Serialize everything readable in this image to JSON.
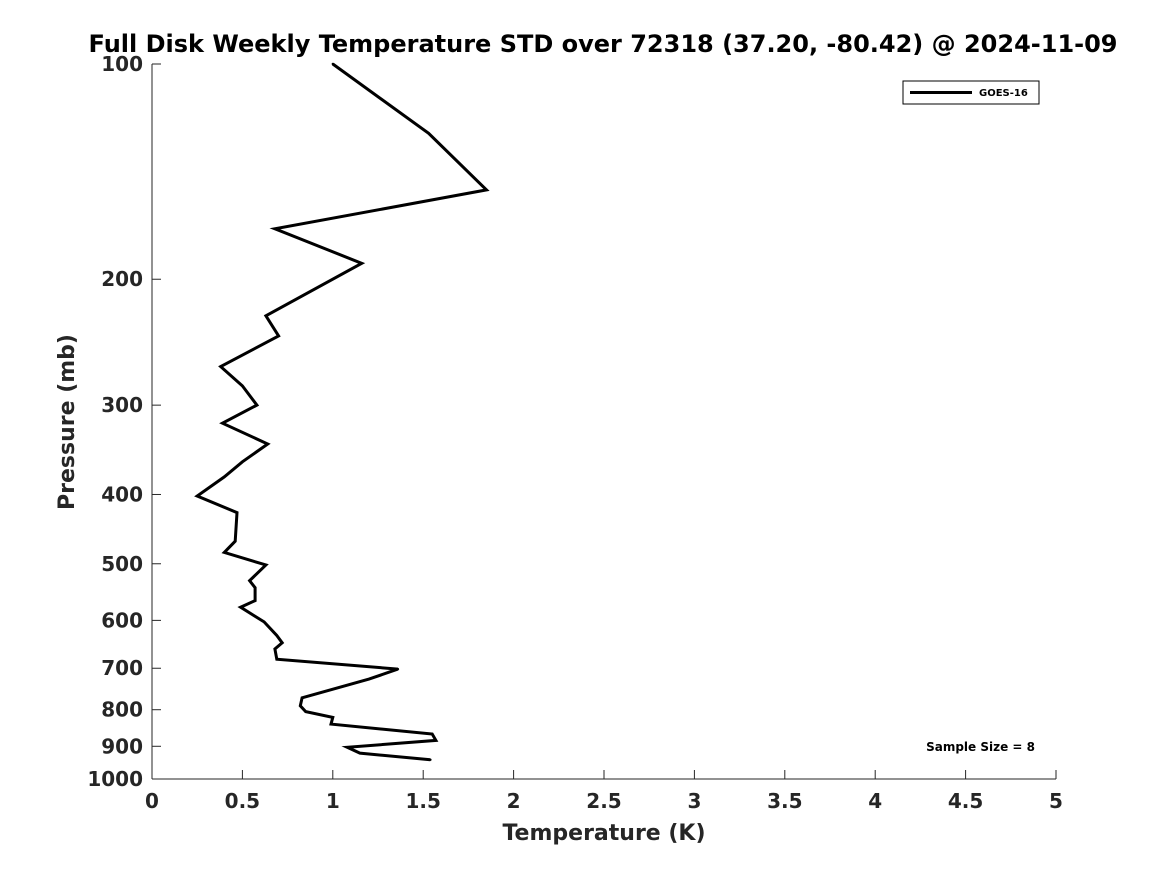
{
  "chart_data": {
    "type": "line",
    "title": "Full Disk Weekly Temperature STD over 72318 (37.20, -80.42) @ 2024-11-09",
    "xlabel": "Temperature (K)",
    "ylabel": "Pressure (mb)",
    "xlim": [
      0,
      5
    ],
    "ylim": [
      1000,
      100
    ],
    "y_scale": "log",
    "y_reversed": true,
    "grid": false,
    "x_ticks": [
      {
        "value": 0,
        "label": "0"
      },
      {
        "value": 0.5,
        "label": "0.5"
      },
      {
        "value": 1,
        "label": "1"
      },
      {
        "value": 1.5,
        "label": "1.5"
      },
      {
        "value": 2,
        "label": "2"
      },
      {
        "value": 2.5,
        "label": "2.5"
      },
      {
        "value": 3,
        "label": "3"
      },
      {
        "value": 3.5,
        "label": "3.5"
      },
      {
        "value": 4,
        "label": "4"
      },
      {
        "value": 4.5,
        "label": "4.5"
      },
      {
        "value": 5,
        "label": "5"
      }
    ],
    "y_ticks": [
      {
        "value": 100,
        "label": "100"
      },
      {
        "value": 200,
        "label": "200"
      },
      {
        "value": 300,
        "label": "300"
      },
      {
        "value": 400,
        "label": "400"
      },
      {
        "value": 500,
        "label": "500"
      },
      {
        "value": 600,
        "label": "600"
      },
      {
        "value": 700,
        "label": "700"
      },
      {
        "value": 800,
        "label": "800"
      },
      {
        "value": 900,
        "label": "900"
      },
      {
        "value": 1000,
        "label": "1000"
      }
    ],
    "legend": {
      "position": "top-right"
    },
    "series": [
      {
        "name": "GOES-16",
        "color": "#000000",
        "points": [
          {
            "x": 1.0,
            "y": 100
          },
          {
            "x": 1.53,
            "y": 125
          },
          {
            "x": 1.85,
            "y": 150
          },
          {
            "x": 0.68,
            "y": 170
          },
          {
            "x": 1.16,
            "y": 190
          },
          {
            "x": 0.63,
            "y": 225
          },
          {
            "x": 0.7,
            "y": 240
          },
          {
            "x": 0.38,
            "y": 265
          },
          {
            "x": 0.5,
            "y": 282
          },
          {
            "x": 0.58,
            "y": 300
          },
          {
            "x": 0.39,
            "y": 318
          },
          {
            "x": 0.64,
            "y": 340
          },
          {
            "x": 0.5,
            "y": 360
          },
          {
            "x": 0.4,
            "y": 378
          },
          {
            "x": 0.25,
            "y": 402
          },
          {
            "x": 0.47,
            "y": 424
          },
          {
            "x": 0.46,
            "y": 465
          },
          {
            "x": 0.4,
            "y": 482
          },
          {
            "x": 0.63,
            "y": 502
          },
          {
            "x": 0.54,
            "y": 528
          },
          {
            "x": 0.57,
            "y": 540
          },
          {
            "x": 0.57,
            "y": 563
          },
          {
            "x": 0.49,
            "y": 575
          },
          {
            "x": 0.62,
            "y": 603
          },
          {
            "x": 0.69,
            "y": 630
          },
          {
            "x": 0.72,
            "y": 645
          },
          {
            "x": 0.68,
            "y": 658
          },
          {
            "x": 0.69,
            "y": 680
          },
          {
            "x": 1.36,
            "y": 702
          },
          {
            "x": 1.2,
            "y": 725
          },
          {
            "x": 0.83,
            "y": 770
          },
          {
            "x": 0.82,
            "y": 790
          },
          {
            "x": 0.85,
            "y": 805
          },
          {
            "x": 1.0,
            "y": 820
          },
          {
            "x": 0.99,
            "y": 838
          },
          {
            "x": 1.55,
            "y": 865
          },
          {
            "x": 1.57,
            "y": 883
          },
          {
            "x": 1.08,
            "y": 903
          },
          {
            "x": 1.15,
            "y": 920
          },
          {
            "x": 1.54,
            "y": 940
          }
        ]
      }
    ],
    "annotations": [
      {
        "text": "Sample Size = 8",
        "position": "bottom-right"
      }
    ]
  }
}
